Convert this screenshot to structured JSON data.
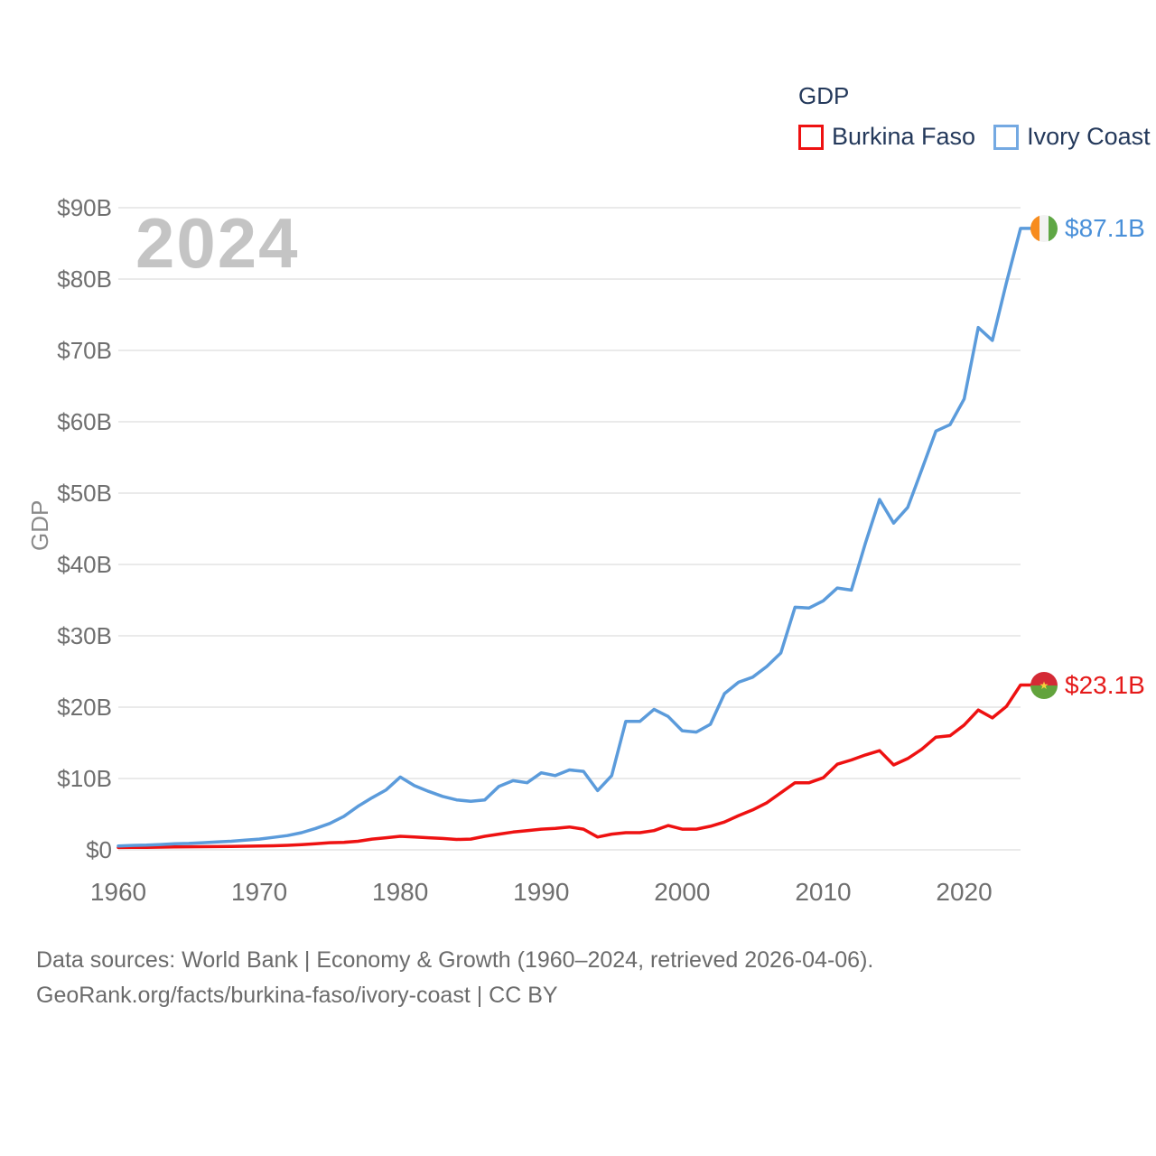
{
  "legend": {
    "title": "GDP",
    "items": [
      {
        "label": "Burkina Faso",
        "color": "#EE1111"
      },
      {
        "label": "Ivory Coast",
        "color": "#74A9E2"
      }
    ]
  },
  "watermark": "2024",
  "axes": {
    "y_title": "GDP",
    "y_ticks": [
      {
        "label": "$90B",
        "value": 90
      },
      {
        "label": "$80B",
        "value": 80
      },
      {
        "label": "$70B",
        "value": 70
      },
      {
        "label": "$60B",
        "value": 60
      },
      {
        "label": "$50B",
        "value": 50
      },
      {
        "label": "$40B",
        "value": 40
      },
      {
        "label": "$30B",
        "value": 30
      },
      {
        "label": "$20B",
        "value": 20
      },
      {
        "label": "$10B",
        "value": 10
      },
      {
        "label": "$0",
        "value": 0
      }
    ],
    "x_ticks": [
      {
        "label": "1960",
        "year": 1960
      },
      {
        "label": "1970",
        "year": 1970
      },
      {
        "label": "1980",
        "year": 1980
      },
      {
        "label": "1990",
        "year": 1990
      },
      {
        "label": "2000",
        "year": 2000
      },
      {
        "label": "2010",
        "year": 2010
      },
      {
        "label": "2020",
        "year": 2020
      }
    ]
  },
  "chart_data": {
    "type": "line",
    "title": "GDP",
    "ylabel": "GDP",
    "xlabel": "",
    "xlim": [
      1960,
      2024
    ],
    "ylim": [
      0,
      90
    ],
    "grid": true,
    "legend_position": "top-right",
    "x": [
      1960,
      1961,
      1962,
      1963,
      1964,
      1965,
      1966,
      1967,
      1968,
      1969,
      1970,
      1971,
      1972,
      1973,
      1974,
      1975,
      1976,
      1977,
      1978,
      1979,
      1980,
      1981,
      1982,
      1983,
      1984,
      1985,
      1986,
      1987,
      1988,
      1989,
      1990,
      1991,
      1992,
      1993,
      1994,
      1995,
      1996,
      1997,
      1998,
      1999,
      2000,
      2001,
      2002,
      2003,
      2004,
      2005,
      2006,
      2007,
      2008,
      2009,
      2010,
      2011,
      2012,
      2013,
      2014,
      2015,
      2016,
      2017,
      2018,
      2019,
      2020,
      2021,
      2022,
      2023,
      2024
    ],
    "series": [
      {
        "name": "Burkina Faso",
        "color": "#EE1111",
        "unit": "current US$ billions",
        "values": [
          0.33,
          0.35,
          0.36,
          0.38,
          0.41,
          0.43,
          0.44,
          0.46,
          0.48,
          0.5,
          0.53,
          0.57,
          0.63,
          0.72,
          0.85,
          1.0,
          1.05,
          1.2,
          1.5,
          1.7,
          1.9,
          1.8,
          1.7,
          1.6,
          1.45,
          1.5,
          1.9,
          2.2,
          2.5,
          2.7,
          2.9,
          3.0,
          3.2,
          2.9,
          1.8,
          2.2,
          2.4,
          2.4,
          2.7,
          3.4,
          2.9,
          2.9,
          3.3,
          3.9,
          4.8,
          5.6,
          6.6,
          8.0,
          9.4,
          9.4,
          10.1,
          12.0,
          12.6,
          13.3,
          13.9,
          11.9,
          12.8,
          14.1,
          15.8,
          16.0,
          17.5,
          19.6,
          18.5,
          20.1,
          23.1
        ]
      },
      {
        "name": "Ivory Coast",
        "color": "#5B9BDB",
        "unit": "current US$ billions",
        "values": [
          0.55,
          0.62,
          0.66,
          0.75,
          0.85,
          0.9,
          1.0,
          1.1,
          1.2,
          1.35,
          1.5,
          1.75,
          2.0,
          2.4,
          3.0,
          3.7,
          4.7,
          6.1,
          7.3,
          8.4,
          10.2,
          9.0,
          8.2,
          7.5,
          7.0,
          6.8,
          7.0,
          8.9,
          9.7,
          9.4,
          10.8,
          10.4,
          11.2,
          11.0,
          8.3,
          10.4,
          18.0,
          18.0,
          19.7,
          18.7,
          16.7,
          16.5,
          17.6,
          21.9,
          23.5,
          24.2,
          25.7,
          27.6,
          34.0,
          33.9,
          34.9,
          36.7,
          36.4,
          43.0,
          49.1,
          45.8,
          48.0,
          53.3,
          58.7,
          59.6,
          63.2,
          73.2,
          71.4,
          79.5,
          87.1
        ]
      }
    ]
  },
  "end_labels": [
    {
      "series": "Ivory Coast",
      "text": "$87.1B",
      "text_color": "#4A90D9",
      "flag": {
        "name": "ivory-coast-flag",
        "layout": "vertical",
        "stripes": [
          "#F78C1E",
          "#F2F2F2",
          "#5FA745"
        ]
      }
    },
    {
      "series": "Burkina Faso",
      "text": "$23.1B",
      "text_color": "#E51A1A",
      "flag": {
        "name": "burkina-faso-flag",
        "layout": "horizontal",
        "stripes": [
          "#D42A35",
          "#62A33C"
        ],
        "star": "#F7CE3C"
      }
    }
  ],
  "footer": {
    "line1": "Data sources: World Bank | Economy & Growth (1960–2024, retrieved 2026-04-06).",
    "line2": "GeoRank.org/facts/burkina-faso/ivory-coast | CC BY"
  }
}
